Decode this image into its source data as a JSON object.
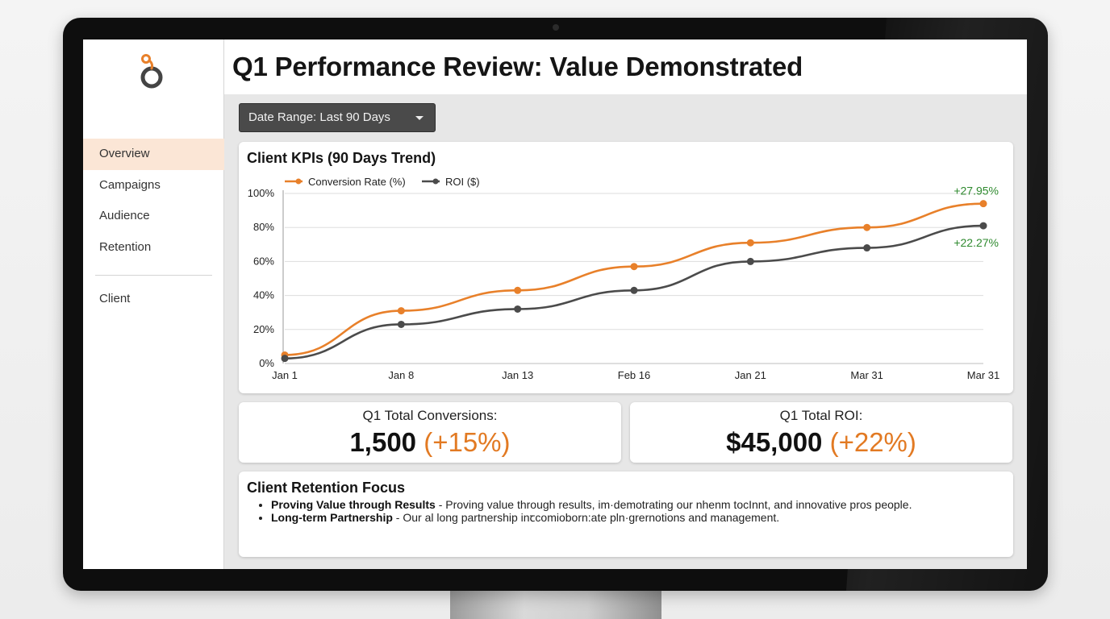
{
  "header": {
    "title": "Q1 Performance Review: Value Demonstrated"
  },
  "sidebar": {
    "items": [
      {
        "label": "Overview",
        "active": true
      },
      {
        "label": "Campaigns",
        "active": false
      },
      {
        "label": "Audience",
        "active": false
      },
      {
        "label": "Retention",
        "active": false
      }
    ],
    "secondary_label": "Client"
  },
  "filter": {
    "date_range_label": "Date Range: Last 90 Days"
  },
  "chart_card": {
    "title": "Client KPIs (90 Days Trend)"
  },
  "chart_data": {
    "type": "line",
    "title": "Client KPIs (90 Days Trend)",
    "categories": [
      "Jan 1",
      "Jan 8",
      "Jan 13",
      "Feb 16",
      "Jan 21",
      "Mar 31",
      "Mar 31"
    ],
    "series": [
      {
        "name": "Conversion Rate (%)",
        "color": "#e8802a",
        "values": [
          5,
          31,
          43,
          57,
          71,
          80,
          94
        ],
        "end_label": "+27.95%"
      },
      {
        "name": "ROI ($)",
        "color": "#4b4b4b",
        "values": [
          3,
          23,
          32,
          43,
          60,
          68,
          81
        ],
        "end_label": "+22.27%"
      }
    ],
    "yticks": [
      "0%",
      "20%",
      "40%",
      "60%",
      "80%",
      "100%"
    ],
    "ylim": [
      0,
      100
    ],
    "grid": true,
    "legend": "top-left",
    "annotation_color": "#2f8a2f"
  },
  "stats": {
    "conversions": {
      "label": "Q1 Total Conversions:",
      "value": "1,500",
      "change": "(+15%)"
    },
    "roi": {
      "label": "Q1 Total ROI:",
      "value": "$45,000",
      "change": "(+22%)"
    }
  },
  "retention": {
    "title": "Client Retention Focus",
    "items": [
      {
        "bold": "Proving Value through Results",
        "text": " - Proving value through results, im·demotrating our nhenm tocInnt, and innovative pros people."
      },
      {
        "bold": "Long-term Partnership",
        "text": " - Our al long partnership inꞇcomioborn:ate pln·grernotions and management."
      }
    ]
  },
  "colors": {
    "accent": "#e8802a",
    "active_nav_bg": "#fbe6d6",
    "positive": "#2f8a2f"
  }
}
